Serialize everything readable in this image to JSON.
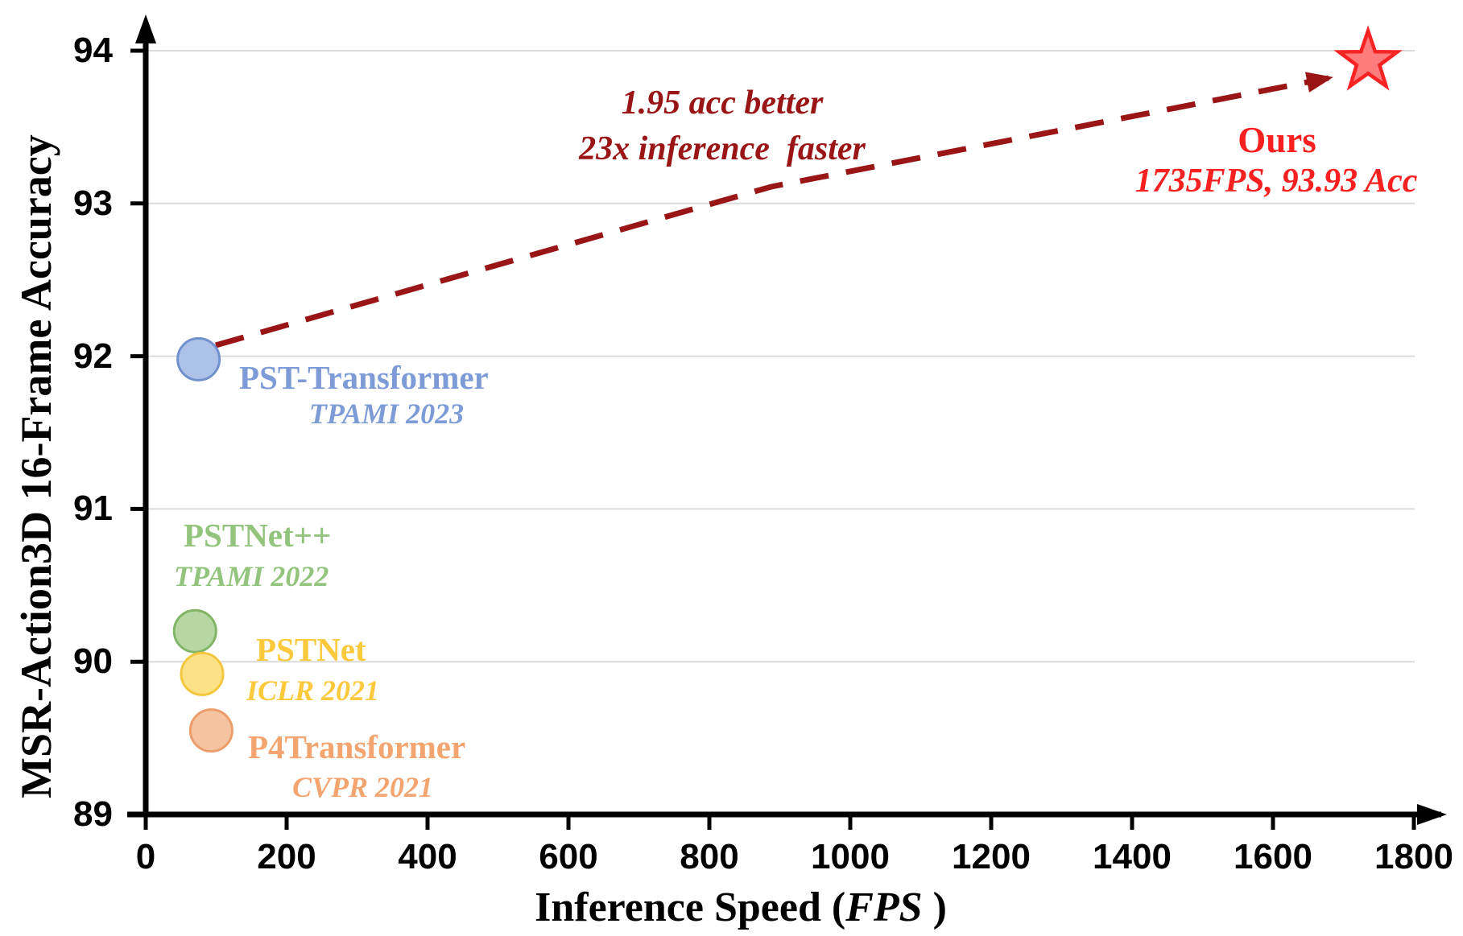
{
  "chart_data": {
    "type": "scatter",
    "title": "",
    "xlabel": "Inference Speed (FPS )",
    "xlabel_parts": {
      "prefix": "Inference Speed (",
      "italic": "FPS",
      "suffix": " )"
    },
    "ylabel": "MSR-Action3D 16-Frame Accuracy",
    "xlim": [
      0,
      1800
    ],
    "ylim": [
      89,
      94
    ],
    "x_ticks": [
      0,
      200,
      400,
      600,
      800,
      1000,
      1200,
      1400,
      1600,
      1800
    ],
    "y_ticks": [
      89,
      90,
      91,
      92,
      93,
      94
    ],
    "grid": {
      "horizontal": true,
      "color": "#DBDBDB"
    },
    "axis_color": "#000000",
    "legend_position": "none",
    "points": [
      {
        "id": "pst-transformer",
        "name": "PST-Transformer",
        "venue": "TPAMI 2023",
        "x": 75,
        "y": 91.98,
        "marker": "circle",
        "fill": "#ACC2E8",
        "stroke": "#7191CE",
        "text_color": "#7D9BD6"
      },
      {
        "id": "pstnet-pp",
        "name": "PSTNet++",
        "venue": "TPAMI 2022",
        "x": 70,
        "y": 90.2,
        "marker": "circle",
        "fill": "#B6D6A3",
        "stroke": "#82B565",
        "text_color": "#93C47D"
      },
      {
        "id": "pstnet",
        "name": "PSTNet",
        "venue": "ICLR 2021",
        "x": 80,
        "y": 89.92,
        "marker": "circle",
        "fill": "#FCE187",
        "stroke": "#F2C73D",
        "text_color": "#FBC93B"
      },
      {
        "id": "p4transformer",
        "name": "P4Transformer",
        "venue": "CVPR 2021",
        "x": 93,
        "y": 89.55,
        "marker": "circle",
        "fill": "#F6C3A0",
        "stroke": "#EB9E6B",
        "text_color": "#F4A46E"
      },
      {
        "id": "ours",
        "name": "Ours",
        "venue": "1735FPS, 93.93 Acc",
        "x": 1735,
        "y": 93.93,
        "marker": "star",
        "fill": "#FD7C7C",
        "stroke": "#FA2323",
        "text_color": "#FB2020"
      }
    ],
    "annotation": {
      "line1": "1.95 acc better",
      "line2": "23x inference  faster",
      "color": "#9A1515"
    },
    "arrow": {
      "from": "PST-Transformer",
      "to": "Ours",
      "color": "#9A1515",
      "style": "dashed"
    }
  }
}
